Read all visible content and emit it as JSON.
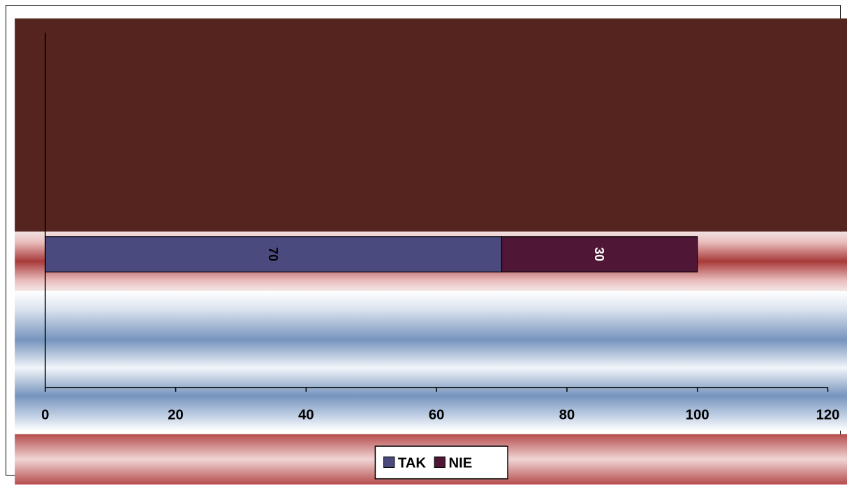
{
  "chart_data": {
    "type": "bar",
    "orientation": "horizontal",
    "stacked": true,
    "categories": [
      ""
    ],
    "series": [
      {
        "name": "TAK",
        "values": [
          70
        ],
        "color": "#4a4a7e"
      },
      {
        "name": "NIE",
        "values": [
          30
        ],
        "color": "#4f1735"
      }
    ],
    "data_labels": [
      "70",
      "30"
    ],
    "xlim": [
      0,
      120
    ],
    "x_ticks": [
      "0",
      "20",
      "40",
      "60",
      "80",
      "100",
      "120"
    ],
    "grid": false,
    "legend": {
      "position": "bottom",
      "entries": [
        "TAK",
        "NIE"
      ]
    },
    "title": "",
    "xlabel": "",
    "ylabel": ""
  },
  "colors": {
    "plot_background_top": "#55241e",
    "band_red": "#a83a3a",
    "band_blue": "#7694bd",
    "axis": "#000000"
  }
}
